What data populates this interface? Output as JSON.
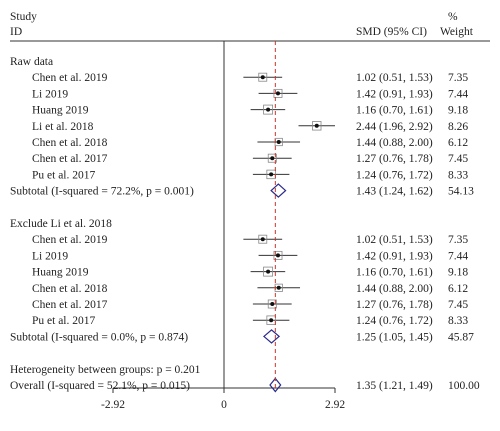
{
  "header": {
    "col_study_line1": "Study",
    "col_study_line2": "ID",
    "col_effect": "SMD (95% CI)",
    "col_weight_line1": "%",
    "col_weight_line2": "Weight"
  },
  "chart_data": {
    "type": "forest",
    "xlim": [
      -2.92,
      2.92
    ],
    "x_ticks": [
      "-2.92",
      "0",
      "2.92"
    ],
    "overall_effect": 1.35,
    "rows": [
      {
        "kind": "group",
        "label": "Raw data"
      },
      {
        "kind": "study",
        "label": "Chen et al. 2019",
        "est": 1.02,
        "lo": 0.51,
        "hi": 1.53,
        "ci_text": "1.02 (0.51, 1.53)",
        "weight": "7.35"
      },
      {
        "kind": "study",
        "label": "Li 2019",
        "est": 1.42,
        "lo": 0.91,
        "hi": 1.93,
        "ci_text": "1.42 (0.91, 1.93)",
        "weight": "7.44"
      },
      {
        "kind": "study",
        "label": "Huang 2019",
        "est": 1.16,
        "lo": 0.7,
        "hi": 1.61,
        "ci_text": "1.16 (0.70, 1.61)",
        "weight": "9.18"
      },
      {
        "kind": "study",
        "label": "Li et al. 2018",
        "est": 2.44,
        "lo": 1.96,
        "hi": 2.92,
        "ci_text": "2.44 (1.96, 2.92)",
        "weight": "8.26"
      },
      {
        "kind": "study",
        "label": "Chen et al. 2018",
        "est": 1.44,
        "lo": 0.88,
        "hi": 2.0,
        "ci_text": "1.44 (0.88, 2.00)",
        "weight": "6.12"
      },
      {
        "kind": "study",
        "label": "Chen et al. 2017",
        "est": 1.27,
        "lo": 0.76,
        "hi": 1.78,
        "ci_text": "1.27 (0.76, 1.78)",
        "weight": "7.45"
      },
      {
        "kind": "study",
        "label": "Pu et al. 2017",
        "est": 1.24,
        "lo": 0.76,
        "hi": 1.72,
        "ci_text": "1.24 (0.76, 1.72)",
        "weight": "8.33"
      },
      {
        "kind": "subtotal",
        "label": "Subtotal (I-squared = 72.2%, p = 0.001)",
        "est": 1.43,
        "lo": 1.24,
        "hi": 1.62,
        "ci_text": "1.43 (1.24, 1.62)",
        "weight": "54.13"
      },
      {
        "kind": "blank"
      },
      {
        "kind": "group",
        "label": "Exclude Li et al. 2018"
      },
      {
        "kind": "study",
        "label": "Chen et al. 2019",
        "est": 1.02,
        "lo": 0.51,
        "hi": 1.53,
        "ci_text": "1.02 (0.51, 1.53)",
        "weight": "7.35"
      },
      {
        "kind": "study",
        "label": "Li 2019",
        "est": 1.42,
        "lo": 0.91,
        "hi": 1.93,
        "ci_text": "1.42 (0.91, 1.93)",
        "weight": "7.44"
      },
      {
        "kind": "study",
        "label": "Huang 2019",
        "est": 1.16,
        "lo": 0.7,
        "hi": 1.61,
        "ci_text": "1.16 (0.70, 1.61)",
        "weight": "9.18"
      },
      {
        "kind": "study",
        "label": "Chen et al. 2018",
        "est": 1.44,
        "lo": 0.88,
        "hi": 2.0,
        "ci_text": "1.44 (0.88, 2.00)",
        "weight": "6.12"
      },
      {
        "kind": "study",
        "label": "Chen et al. 2017",
        "est": 1.27,
        "lo": 0.76,
        "hi": 1.78,
        "ci_text": "1.27 (0.76, 1.78)",
        "weight": "7.45"
      },
      {
        "kind": "study",
        "label": "Pu et al. 2017",
        "est": 1.24,
        "lo": 0.76,
        "hi": 1.72,
        "ci_text": "1.24 (0.76, 1.72)",
        "weight": "8.33"
      },
      {
        "kind": "subtotal",
        "label": "Subtotal (I-squared = 0.0%, p = 0.874)",
        "est": 1.25,
        "lo": 1.05,
        "hi": 1.45,
        "ci_text": "1.25 (1.05, 1.45)",
        "weight": "45.87"
      },
      {
        "kind": "blank"
      },
      {
        "kind": "text",
        "label": "Heterogeneity between groups: p = 0.201"
      },
      {
        "kind": "overall",
        "label": "Overall (I-squared = 52.1%, p = 0.015)",
        "est": 1.35,
        "lo": 1.21,
        "hi": 1.49,
        "ci_text": "1.35 (1.21, 1.49)",
        "weight": "100.00"
      }
    ],
    "colors": {
      "text": "#222222",
      "axis": "#333333",
      "ci_line": "#333333",
      "box": "#888888",
      "point": "#111111",
      "diamond": "#2a2a8c",
      "overall_line": "#c0392b"
    }
  }
}
